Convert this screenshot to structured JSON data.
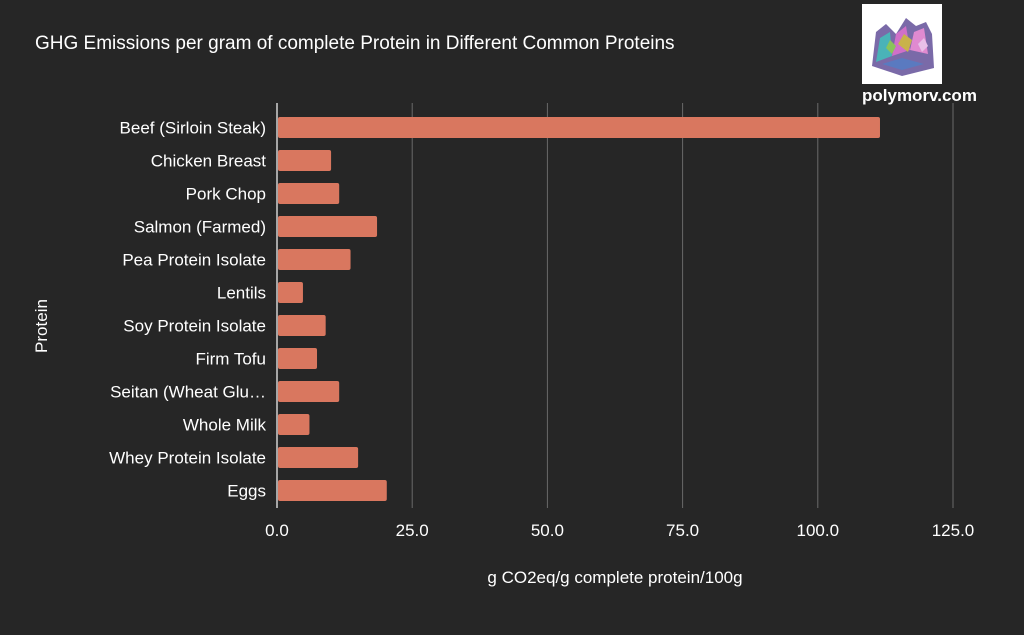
{
  "chart_data": {
    "type": "bar",
    "orientation": "horizontal",
    "title": "GHG Emissions per gram of complete Protein in Different Common Proteins",
    "xlabel": "g CO2eq/g complete protein/100g",
    "ylabel": "Protein",
    "categories": [
      "Beef (Sirloin Steak)",
      "Chicken Breast",
      "Pork Chop",
      "Salmon (Farmed)",
      "Pea Protein Isolate",
      "Lentils",
      "Soy Protein Isolate",
      "Firm Tofu",
      "Seitan (Wheat Glu…",
      "Whole Milk",
      "Whey Protein Isolate",
      "Eggs"
    ],
    "values": [
      111.5,
      10.0,
      11.5,
      18.5,
      13.6,
      4.8,
      9.0,
      7.4,
      11.5,
      6.0,
      15.0,
      20.3
    ],
    "xlim": [
      0,
      125
    ],
    "xticks": [
      0,
      25,
      50,
      75,
      100,
      125
    ],
    "xtick_labels": [
      "0.0",
      "25.0",
      "50.0",
      "75.0",
      "100.0",
      "125.0"
    ],
    "grid": "vertical",
    "bar_color": "#d9775f",
    "grid_color": "#6a6a6a"
  },
  "branding": {
    "site": "polymorv.com",
    "logo_icon": "bismuth-crystal-icon"
  },
  "colors": {
    "background": "#262626",
    "text": "#ffffff"
  }
}
